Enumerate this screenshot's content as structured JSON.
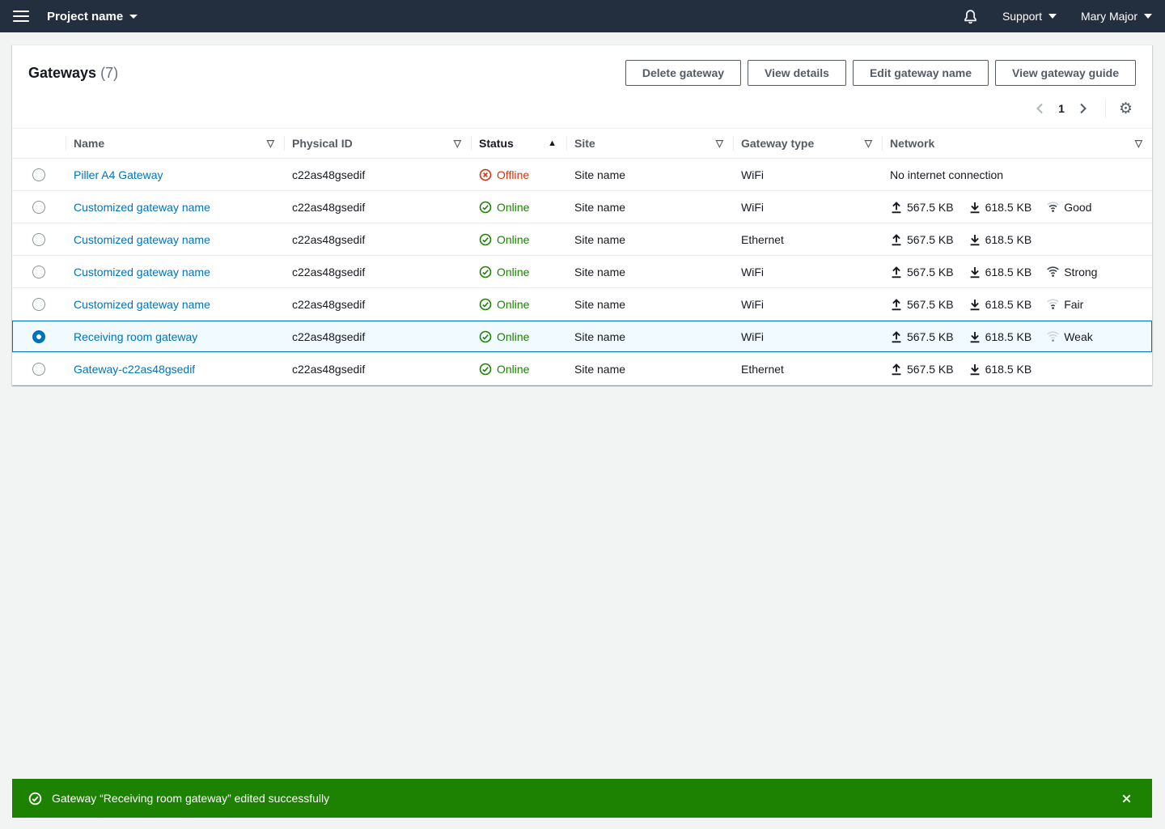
{
  "topbar": {
    "project_label": "Project name",
    "support_label": "Support",
    "user_name": "Mary Major"
  },
  "header": {
    "title": "Gateways",
    "count": "(7)"
  },
  "toolbar": {
    "buttons": [
      "Delete gateway",
      "View details",
      "Edit gateway name",
      "View gateway guide"
    ]
  },
  "pagination": {
    "page": "1"
  },
  "table": {
    "columns": [
      {
        "label": "Name",
        "icon": "filter",
        "sorted": false
      },
      {
        "label": "Physical ID",
        "icon": "filter",
        "sorted": false
      },
      {
        "label": "Status",
        "icon": "sort-asc",
        "sorted": true
      },
      {
        "label": "Site",
        "icon": "filter",
        "sorted": false
      },
      {
        "label": "Gateway type",
        "icon": "filter",
        "sorted": false
      },
      {
        "label": "Network",
        "icon": "filter",
        "sorted": false
      }
    ],
    "rows": [
      {
        "name": "Piller A4 Gateway",
        "physical_id": "c22as48gsedif",
        "status": "Offline",
        "status_type": "offline",
        "site": "Site name",
        "gateway_type": "WiFi",
        "selected": false,
        "network": {
          "text": "No internet connection"
        }
      },
      {
        "name": "Customized gateway name",
        "physical_id": "c22as48gsedif",
        "status": "Online",
        "status_type": "online",
        "site": "Site name",
        "gateway_type": "WiFi",
        "selected": false,
        "network": {
          "upload": "567.5 KB",
          "download": "618.5 KB",
          "signal": "Good"
        }
      },
      {
        "name": "Customized gateway name",
        "physical_id": "c22as48gsedif",
        "status": "Online",
        "status_type": "online",
        "site": "Site name",
        "gateway_type": "Ethernet",
        "selected": false,
        "network": {
          "upload": "567.5 KB",
          "download": "618.5 KB"
        }
      },
      {
        "name": "Customized gateway name",
        "physical_id": "c22as48gsedif",
        "status": "Online",
        "status_type": "online",
        "site": "Site name",
        "gateway_type": "WiFi",
        "selected": false,
        "network": {
          "upload": "567.5 KB",
          "download": "618.5 KB",
          "signal": "Strong"
        }
      },
      {
        "name": "Customized gateway name",
        "physical_id": "c22as48gsedif",
        "status": "Online",
        "status_type": "online",
        "site": "Site name",
        "gateway_type": "WiFi",
        "selected": false,
        "network": {
          "upload": "567.5 KB",
          "download": "618.5 KB",
          "signal": "Fair"
        }
      },
      {
        "name": "Receiving room gateway",
        "physical_id": "c22as48gsedif",
        "status": "Online",
        "status_type": "online",
        "site": "Site name",
        "gateway_type": "WiFi",
        "selected": true,
        "network": {
          "upload": "567.5 KB",
          "download": "618.5 KB",
          "signal": "Weak"
        }
      },
      {
        "name": "Gateway-c22as48gsedif",
        "physical_id": "c22as48gsedif",
        "status": "Online",
        "status_type": "online",
        "site": "Site name",
        "gateway_type": "Ethernet",
        "selected": false,
        "network": {
          "upload": "567.5 KB",
          "download": "618.5 KB"
        }
      }
    ]
  },
  "flashbar": {
    "message": "Gateway “Receiving room gateway” edited successfully"
  },
  "colors": {
    "topbar_bg": "#232f3e",
    "link": "#0073bb",
    "success": "#1d8102",
    "error": "#d13212",
    "selected_row_bg": "#f1faff",
    "flashbar_bg": "#1d8102"
  }
}
